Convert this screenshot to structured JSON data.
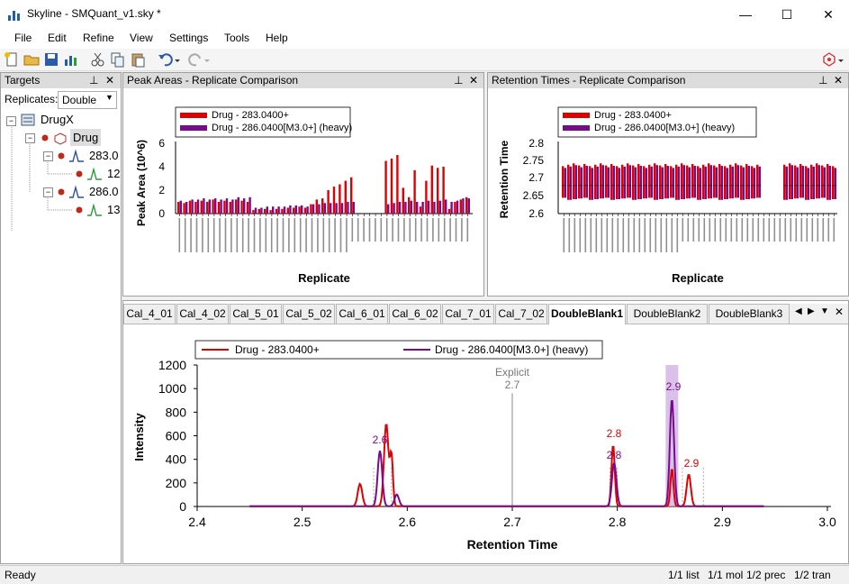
{
  "window": {
    "title": "Skyline - SMQuant_v1.sky *",
    "minimize": "—",
    "maximize": "☐",
    "close": "✕"
  },
  "menu": [
    "File",
    "Edit",
    "Refine",
    "View",
    "Settings",
    "Tools",
    "Help"
  ],
  "targets": {
    "title": "Targets",
    "replicates_label": "Replicates:",
    "replicates_value": "Double",
    "tree": {
      "molecule_list": "DrugX",
      "molecule": "Drug",
      "precursor1": "283.0",
      "transition1": "12",
      "precursor2": "286.0",
      "transition2": "13"
    }
  },
  "peak_areas": {
    "title": "Peak Areas - Replicate Comparison",
    "legend": [
      "Drug - 283.0400+",
      "Drug - 286.0400[M3.0+] (heavy)"
    ],
    "ylabel": "Peak Area (10^6)",
    "xlabel": "Replicate",
    "yticks": [
      "6",
      "4",
      "2",
      "0"
    ]
  },
  "retention_times": {
    "title": "Retention Times - Replicate Comparison",
    "legend": [
      "Drug - 283.0400+",
      "Drug - 286.0400[M3.0+] (heavy)"
    ],
    "ylabel": "Retention Time",
    "xlabel": "Replicate",
    "yticks": [
      "2.8",
      "2.75",
      "2.7",
      "2.65",
      "2.6"
    ]
  },
  "tabs": [
    "Cal_4_01",
    "Cal_4_02",
    "Cal_5_01",
    "Cal_5_02",
    "Cal_6_01",
    "Cal_6_02",
    "Cal_7_01",
    "Cal_7_02",
    "DoubleBlank1",
    "DoubleBlank2",
    "DoubleBlank3"
  ],
  "active_tab": "DoubleBlank1",
  "chromatogram": {
    "legend": [
      "Drug - 283.0400+",
      "Drug - 286.0400[M3.0+] (heavy)"
    ],
    "ylabel": "Intensity",
    "xlabel": "Retention Time",
    "xticks": [
      "2.4",
      "2.5",
      "2.6",
      "2.7",
      "2.8",
      "2.9",
      "3.0"
    ],
    "yticks": [
      "1200",
      "1000",
      "800",
      "600",
      "400",
      "200",
      "0"
    ],
    "explicit_label": "Explicit",
    "explicit_value": "2.7",
    "peak_labels": {
      "p1": "2.6",
      "p2a": "2.8",
      "p2b": "2.8",
      "p3": "2.9",
      "p4": "2.9"
    }
  },
  "colors": {
    "light": "#e00000",
    "heavy": "#7a0a8c"
  },
  "status": {
    "left": "Ready",
    "list": "1/1 list",
    "mol": "1/1 mol",
    "prec": "1/2 prec",
    "tran": "1/2 tran"
  }
}
